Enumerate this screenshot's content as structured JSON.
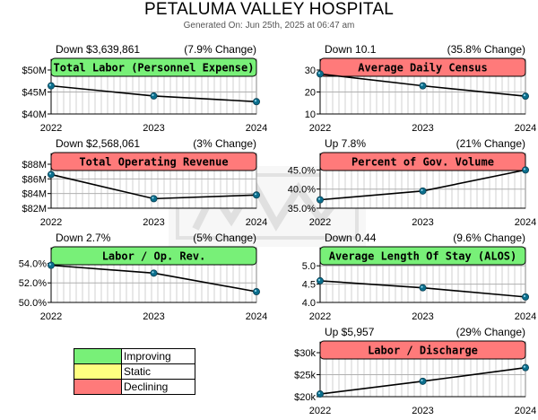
{
  "header": {
    "title": "PETALUMA VALLEY HOSPITAL",
    "subtitle": "Generated On: Jun 25th, 2025 at 06:47 am"
  },
  "colors": {
    "improving": "#78f078",
    "static": "#ffff80",
    "declining": "#ff7a7a",
    "marker": "#0a6e8c",
    "line": "#000000",
    "grid": "#999999"
  },
  "legend": [
    {
      "label": "Improving",
      "color": "#78f078"
    },
    {
      "label": "Static",
      "color": "#ffff80"
    },
    {
      "label": "Declining",
      "color": "#ff7a7a"
    }
  ],
  "chart_data": [
    {
      "type": "line",
      "title": "Total Labor (Personnel Expense)",
      "status": "improving",
      "change": "Down $3,639,861",
      "pct": "(7.9% Change)",
      "x": [
        "2022",
        "2023",
        "2024"
      ],
      "values": [
        46.4,
        44.1,
        42.8
      ],
      "ylim": [
        40,
        50
      ],
      "yticks": [
        50,
        45,
        40
      ],
      "yticklabels": [
        "$50M",
        "$45M",
        "$40M"
      ]
    },
    {
      "type": "line",
      "title": "Average Daily Census",
      "status": "declining",
      "change": "Down 10.1",
      "pct": "(35.8% Change)",
      "x": [
        "2022",
        "2023",
        "2024"
      ],
      "values": [
        28.2,
        22.8,
        18.1
      ],
      "ylim": [
        10,
        30
      ],
      "yticks": [
        30,
        20,
        10
      ],
      "yticklabels": [
        "30",
        "20",
        "10"
      ]
    },
    {
      "type": "line",
      "title": "Total Operating Revenue",
      "status": "declining",
      "change": "Down $2,568,061",
      "pct": "(3% Change)",
      "x": [
        "2022",
        "2023",
        "2024"
      ],
      "values": [
        86.6,
        83.3,
        83.8
      ],
      "ylim": [
        82,
        88
      ],
      "yticks": [
        88,
        86,
        84,
        82
      ],
      "yticklabels": [
        "$88M",
        "$86M",
        "$84M",
        "$82M"
      ]
    },
    {
      "type": "line",
      "title": "Percent of Gov. Volume",
      "status": "declining",
      "change": "Up 7.8%",
      "pct": "(21% Change)",
      "x": [
        "2022",
        "2023",
        "2024"
      ],
      "values": [
        37.2,
        39.5,
        45.0
      ],
      "ylim": [
        35,
        46.5
      ],
      "yticks": [
        45,
        40,
        35
      ],
      "yticklabels": [
        "45.0%",
        "40.0%",
        "35.0%"
      ]
    },
    {
      "type": "line",
      "title": "Labor / Op. Rev.",
      "status": "improving",
      "change": "Down 2.7%",
      "pct": "(5% Change)",
      "x": [
        "2022",
        "2023",
        "2024"
      ],
      "values": [
        53.8,
        53.0,
        51.1
      ],
      "ylim": [
        50,
        54.5
      ],
      "yticks": [
        54,
        52,
        50
      ],
      "yticklabels": [
        "54.0%",
        "52.0%",
        "50.0%"
      ]
    },
    {
      "type": "line",
      "title": "Average Length Of Stay (ALOS)",
      "status": "improving",
      "change": "Down 0.44",
      "pct": "(9.6% Change)",
      "x": [
        "2022",
        "2023",
        "2024"
      ],
      "values": [
        4.59,
        4.4,
        4.15
      ],
      "ylim": [
        4.0,
        5.2
      ],
      "yticks": [
        5.0,
        4.5,
        4.0
      ],
      "yticklabels": [
        "5.0",
        "4.5",
        "4.0"
      ]
    },
    {
      "type": "line",
      "title": "Labor / Discharge",
      "status": "declining",
      "change": "Up $5,957",
      "pct": "(29% Change)",
      "x": [
        "2022",
        "2023",
        "2024"
      ],
      "values": [
        20.6,
        23.5,
        26.6
      ],
      "ylim": [
        20,
        30
      ],
      "yticks": [
        30,
        25,
        20
      ],
      "yticklabels": [
        "$30k",
        "$25k",
        "$20k"
      ]
    }
  ]
}
